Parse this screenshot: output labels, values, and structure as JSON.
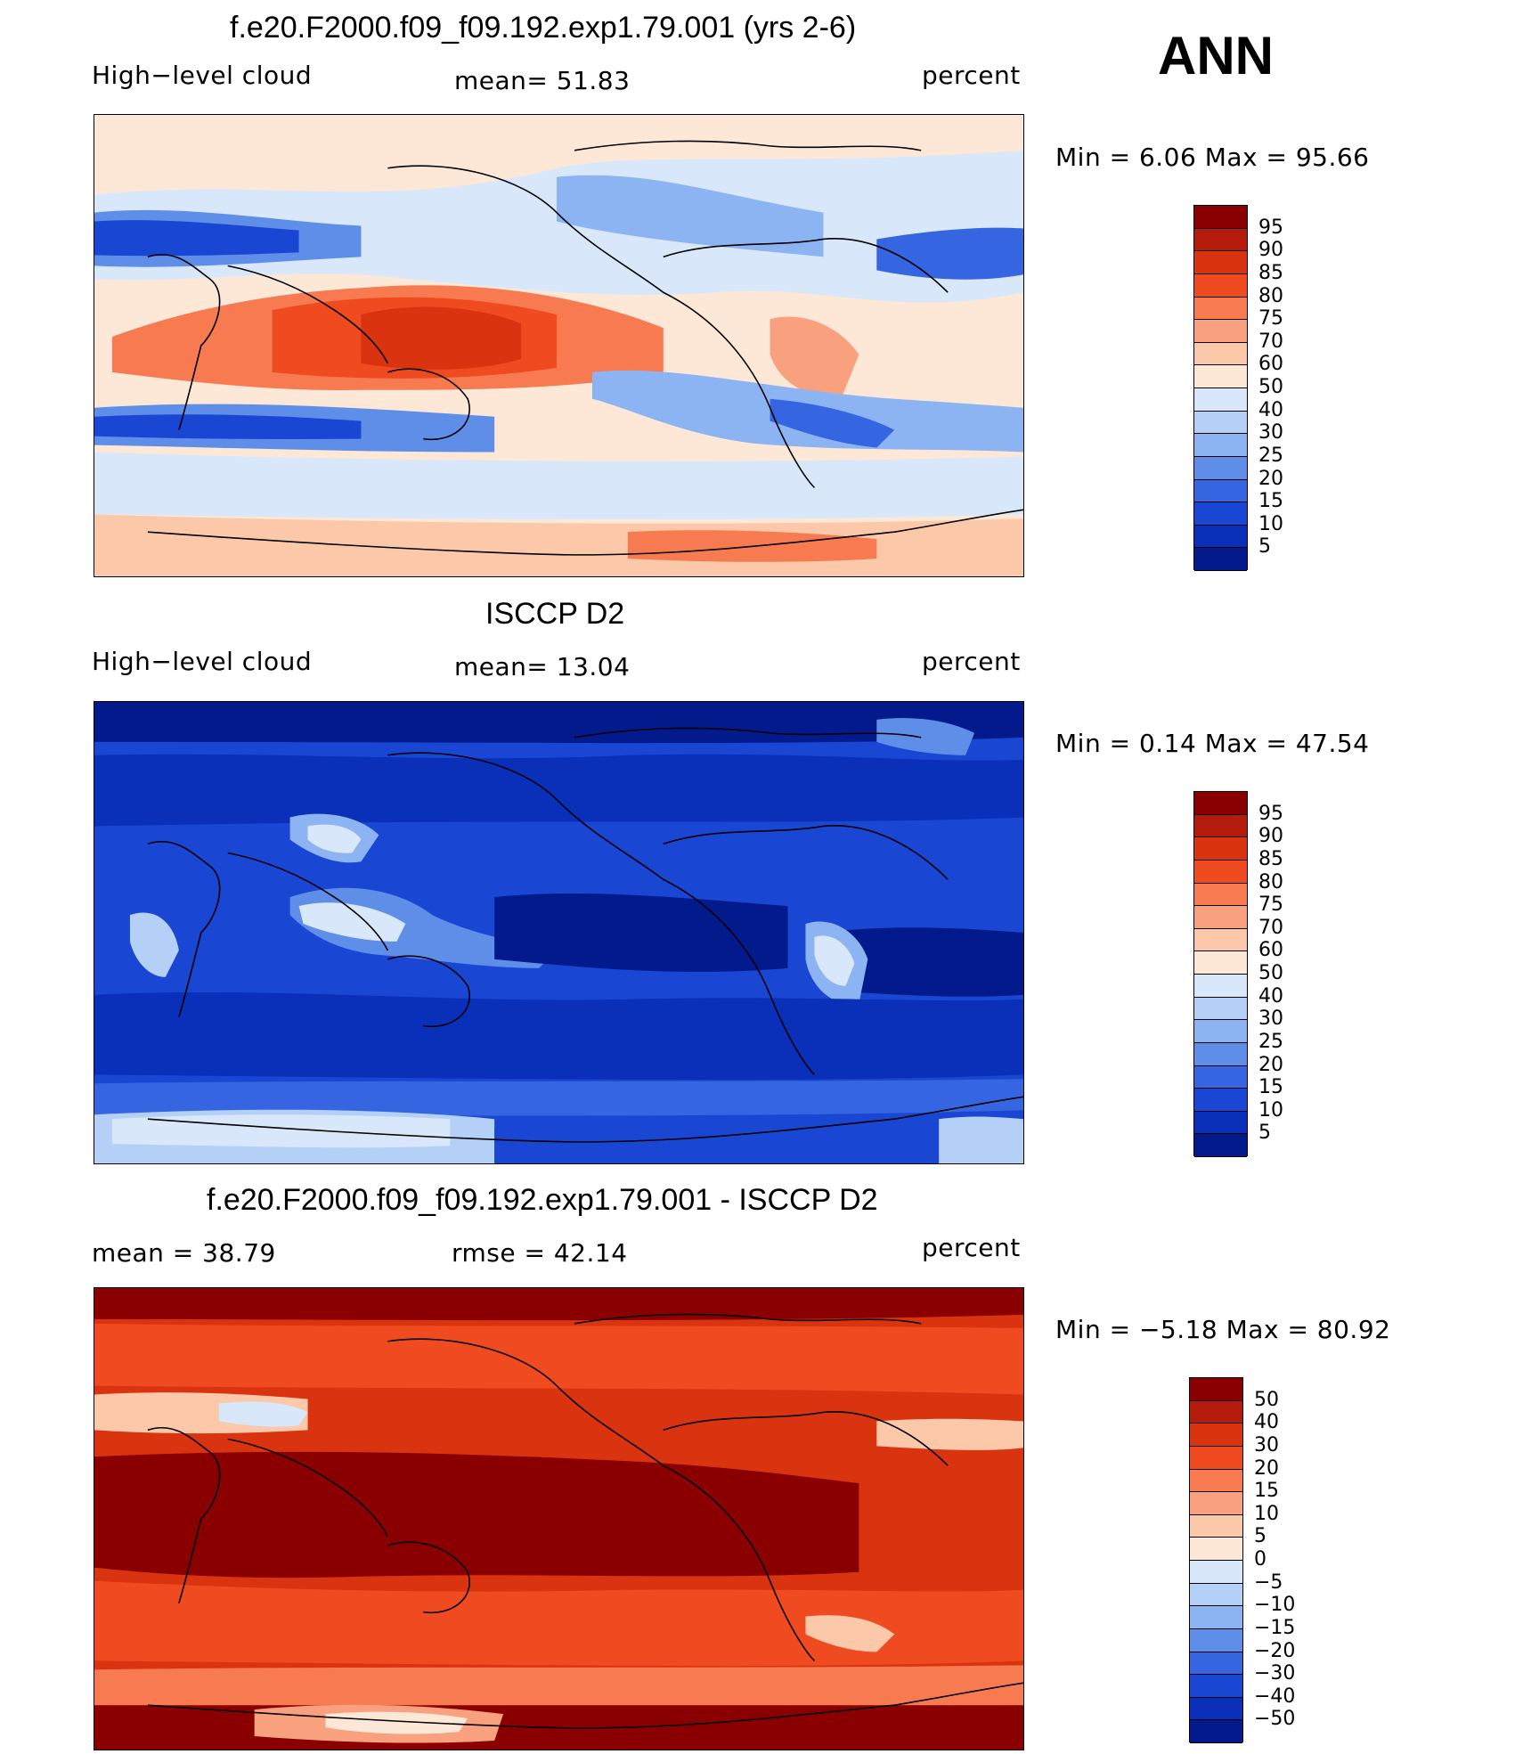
{
  "season": "ANN",
  "panels": [
    {
      "title": "f.e20.F2000.f09_f09.192.exp1.79.001 (yrs 2-6)",
      "left_label": "High−level cloud",
      "center_label": "mean=   51.83",
      "units": "percent",
      "minmax": "Min =    6.06  Max =    95.66",
      "colorbar": {
        "labels": [
          "95",
          "90",
          "85",
          "80",
          "75",
          "70",
          "60",
          "50",
          "40",
          "30",
          "25",
          "20",
          "15",
          "10",
          "5"
        ],
        "colors": [
          "#8a0000",
          "#b51b0a",
          "#d9330f",
          "#ef4a20",
          "#f77a50",
          "#f9a07e",
          "#fbc8aa",
          "#fde8d8",
          "#d8e8fa",
          "#b5d0f7",
          "#8db4f2",
          "#5f8ee9",
          "#3565e0",
          "#1a46d4",
          "#0a2fb8",
          "#031a8c"
        ]
      }
    },
    {
      "title": "ISCCP D2",
      "left_label": "High−level cloud",
      "center_label": "mean=   13.04",
      "units": "percent",
      "minmax": "Min =    0.14  Max =    47.54",
      "colorbar": {
        "labels": [
          "95",
          "90",
          "85",
          "80",
          "75",
          "70",
          "60",
          "50",
          "40",
          "30",
          "25",
          "20",
          "15",
          "10",
          "5"
        ],
        "colors": [
          "#8a0000",
          "#b51b0a",
          "#d9330f",
          "#ef4a20",
          "#f77a50",
          "#f9a07e",
          "#fbc8aa",
          "#fde8d8",
          "#d8e8fa",
          "#b5d0f7",
          "#8db4f2",
          "#5f8ee9",
          "#3565e0",
          "#1a46d4",
          "#0a2fb8",
          "#031a8c"
        ]
      }
    },
    {
      "title": "f.e20.F2000.f09_f09.192.exp1.79.001 - ISCCP D2",
      "left_label": "mean =    38.79",
      "center_label": "rmse =    42.14",
      "units": "percent",
      "minmax": "Min =   −5.18  Max =    80.92",
      "colorbar": {
        "labels": [
          "50",
          "40",
          "30",
          "20",
          "15",
          "10",
          "5",
          "0",
          "−5",
          "−10",
          "−15",
          "−20",
          "−30",
          "−40",
          "−50"
        ],
        "colors": [
          "#8a0000",
          "#b51b0a",
          "#d9330f",
          "#ef4a20",
          "#f77a50",
          "#f9a07e",
          "#fbc8aa",
          "#fde8d8",
          "#d8e8fa",
          "#b5d0f7",
          "#8db4f2",
          "#5f8ee9",
          "#3565e0",
          "#1a46d4",
          "#0a2fb8",
          "#031a8c"
        ]
      }
    }
  ]
}
